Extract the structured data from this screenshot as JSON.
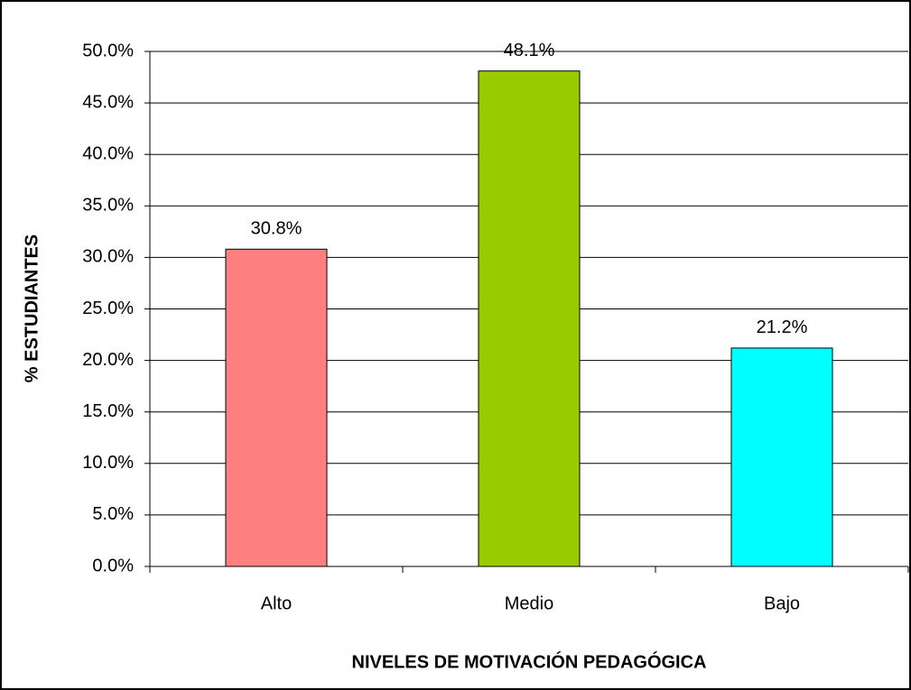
{
  "chart_data": {
    "type": "bar",
    "categories": [
      "Alto",
      "Medio",
      "Bajo"
    ],
    "values": [
      30.8,
      48.1,
      21.2
    ],
    "value_labels": [
      "30.8%",
      "48.1%",
      "21.2%"
    ],
    "colors": [
      "#ff8080",
      "#99cc00",
      "#00ffff"
    ],
    "x_label": "NIVELES DE MOTIVACIÓN PEDAGÓGICA",
    "y_label": "% ESTUDIANTES",
    "ylim": [
      0,
      50
    ],
    "yticks": [
      {
        "value": 0,
        "label": "0.0%"
      },
      {
        "value": 5,
        "label": "5.0%"
      },
      {
        "value": 10,
        "label": "10.0%"
      },
      {
        "value": 15,
        "label": "15.0%"
      },
      {
        "value": 20,
        "label": "20.0%"
      },
      {
        "value": 25,
        "label": "25.0%"
      },
      {
        "value": 30,
        "label": "30.0%"
      },
      {
        "value": 35,
        "label": "35.0%"
      },
      {
        "value": 40,
        "label": "40.0%"
      },
      {
        "value": 45,
        "label": "45.0%"
      },
      {
        "value": 50,
        "label": "50.0%"
      }
    ],
    "grid": true
  }
}
